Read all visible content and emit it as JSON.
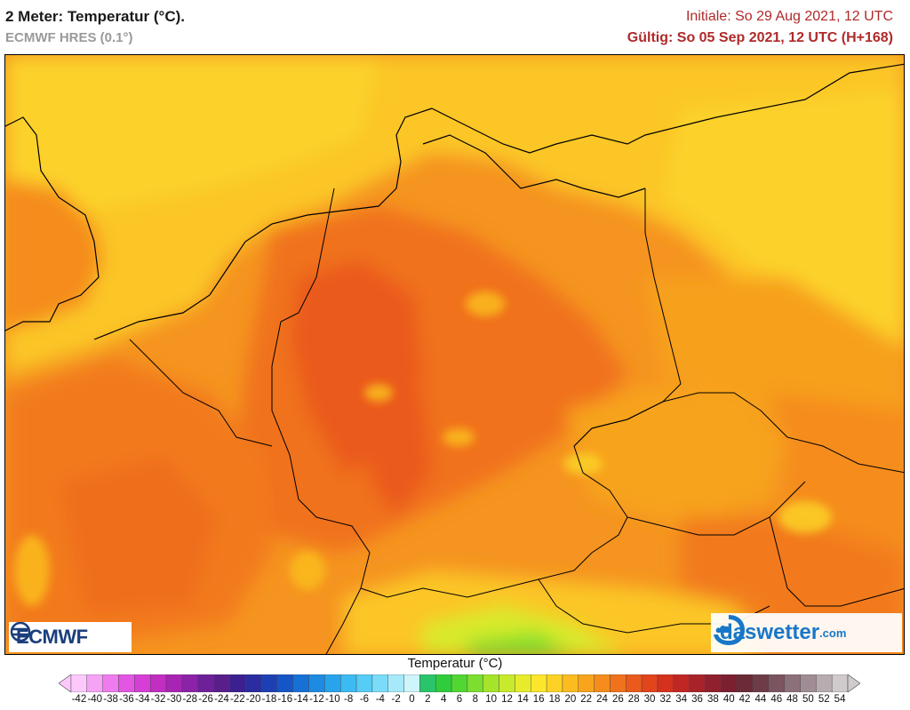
{
  "header": {
    "title": "2 Meter: Temperatur (°C).",
    "model": "ECMWF HRES (0.1°)",
    "init": "Initiale: So 29 Aug 2021, 12 UTC",
    "valid": "Gültig: So 05 Sep 2021, 12 UTC (H+168)"
  },
  "logos": {
    "ecmwf": "ECMWF",
    "daswetter": "daswetter",
    "daswetter_tld": ".com"
  },
  "legend": {
    "title": "Temperatur (°C)",
    "labels": [
      "-42",
      "-40",
      "-38",
      "-36",
      "-34",
      "-32",
      "-30",
      "-28",
      "-26",
      "-24",
      "-22",
      "-20",
      "-18",
      "-16",
      "-14",
      "-12",
      "-10",
      "-8",
      "-6",
      "-4",
      "-2",
      "0",
      "2",
      "4",
      "6",
      "8",
      "10",
      "12",
      "14",
      "16",
      "18",
      "20",
      "22",
      "24",
      "26",
      "28",
      "30",
      "32",
      "34",
      "36",
      "38",
      "40",
      "42",
      "44",
      "46",
      "48",
      "50",
      "52",
      "54"
    ],
    "colors": [
      "#fdc9fd",
      "#f6a3f6",
      "#ef7cef",
      "#e356e3",
      "#d63fd6",
      "#c22dc2",
      "#a824b5",
      "#8c22a8",
      "#6e2098",
      "#581f8a",
      "#3c2090",
      "#2a2ca0",
      "#1c40b4",
      "#1456c6",
      "#1670d6",
      "#1e8ae2",
      "#28a4ec",
      "#3cbaf2",
      "#56ccf6",
      "#7adcf8",
      "#a6eafa",
      "#cdf5fb",
      "#2ac46a",
      "#30cc3c",
      "#52d632",
      "#7cde2e",
      "#a6e42c",
      "#c8ea2c",
      "#e6ec2c",
      "#fce62c",
      "#fcd226",
      "#fbbc1f",
      "#f8a41c",
      "#f58c1c",
      "#f0721c",
      "#ea5a1c",
      "#e2441c",
      "#d4321e",
      "#c02624",
      "#a8222a",
      "#90202e",
      "#7a2030",
      "#6a2a36",
      "#6e3c48",
      "#7c5460",
      "#8c707a",
      "#a08c94",
      "#b8acb0",
      "#d0cacc"
    ]
  }
}
